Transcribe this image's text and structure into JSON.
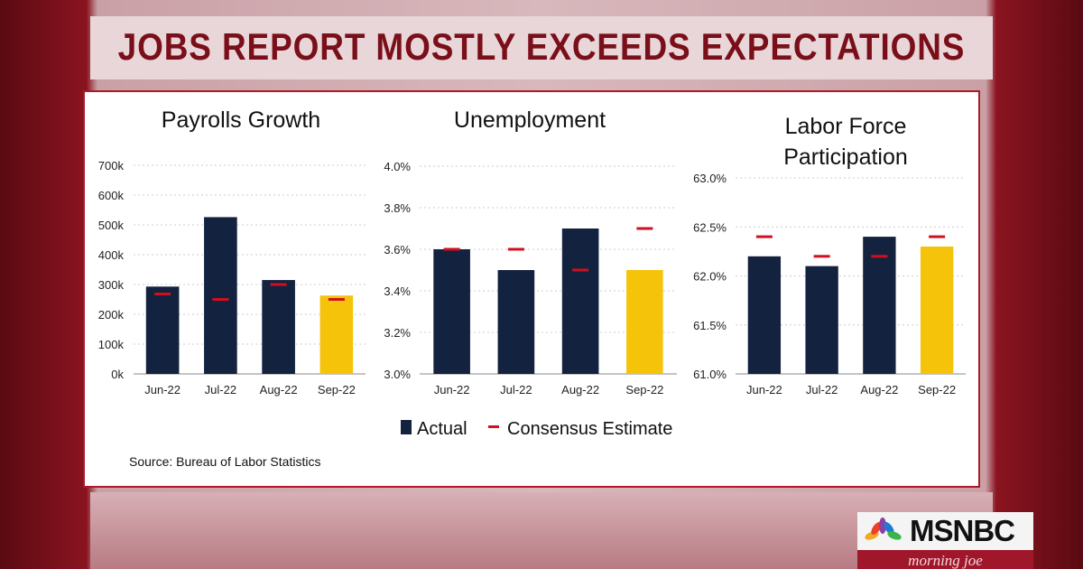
{
  "headline": "JOBS REPORT MOSTLY EXCEEDS EXPECTATIONS",
  "legend": {
    "actual": "Actual",
    "estimate": "Consensus Estimate"
  },
  "source": "Source: Bureau of Labor Statistics",
  "logo": {
    "brand": "MSNBC",
    "show": "morning joe"
  },
  "colors": {
    "actual": "#13223f",
    "latest": "#f5c30a",
    "estimate": "#d0101e",
    "headline": "#7a0f1a"
  },
  "chart_data": [
    {
      "type": "bar",
      "title": "Payrolls Growth",
      "categories": [
        "Jun-22",
        "Jul-22",
        "Aug-22",
        "Sep-22"
      ],
      "series": [
        {
          "name": "Actual",
          "values": [
            293,
            526,
            315,
            263
          ]
        },
        {
          "name": "Consensus Estimate",
          "values": [
            268,
            250,
            300,
            250
          ]
        }
      ],
      "ylim": [
        0,
        700
      ],
      "yticks": [
        "0k",
        "100k",
        "200k",
        "300k",
        "400k",
        "500k",
        "600k",
        "700k"
      ],
      "grid": true
    },
    {
      "type": "bar",
      "title": "Unemployment",
      "categories": [
        "Jun-22",
        "Jul-22",
        "Aug-22",
        "Sep-22"
      ],
      "series": [
        {
          "name": "Actual",
          "values": [
            3.6,
            3.5,
            3.7,
            3.5
          ]
        },
        {
          "name": "Consensus Estimate",
          "values": [
            3.6,
            3.6,
            3.5,
            3.7
          ]
        }
      ],
      "ylim": [
        3.0,
        4.0
      ],
      "yticks": [
        "3.0%",
        "3.2%",
        "3.4%",
        "3.6%",
        "3.8%",
        "4.0%"
      ],
      "grid": true
    },
    {
      "type": "bar",
      "title": "Labor Force Participation",
      "title_lines": [
        "Labor Force",
        "Participation"
      ],
      "categories": [
        "Jun-22",
        "Jul-22",
        "Aug-22",
        "Sep-22"
      ],
      "series": [
        {
          "name": "Actual",
          "values": [
            62.2,
            62.1,
            62.4,
            62.3
          ]
        },
        {
          "name": "Consensus Estimate",
          "values": [
            62.4,
            62.2,
            62.2,
            62.4
          ]
        }
      ],
      "ylim": [
        61.0,
        63.0
      ],
      "yticks": [
        "61.0%",
        "61.5%",
        "62.0%",
        "62.5%",
        "63.0%"
      ],
      "grid": true
    }
  ]
}
